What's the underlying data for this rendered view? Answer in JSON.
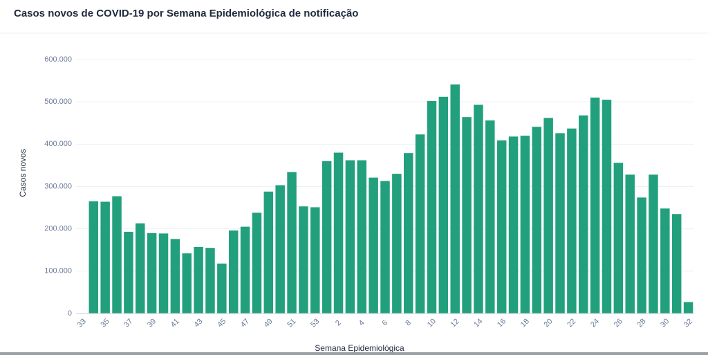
{
  "chart_data": {
    "type": "bar",
    "title": "Casos novos de COVID-19 por Semana Epidemiológica de notificação",
    "xlabel": "Semana Epidemiológica",
    "ylabel": "Casos novos",
    "categories": [
      "33",
      null,
      "35",
      null,
      "37",
      null,
      "39",
      null,
      "41",
      null,
      "43",
      null,
      "45",
      null,
      "47",
      null,
      "49",
      null,
      "51",
      null,
      "53",
      null,
      "2",
      null,
      "4",
      null,
      "6",
      null,
      "8",
      null,
      "10",
      null,
      "12",
      null,
      "14",
      null,
      "16",
      null,
      "18",
      null,
      "20",
      null,
      "22",
      null,
      "24",
      null,
      "26",
      null,
      "28",
      null,
      "30",
      null,
      "32"
    ],
    "values": [
      null,
      265000,
      264000,
      277000,
      193000,
      213000,
      190000,
      189000,
      176000,
      142000,
      157000,
      155000,
      118000,
      196000,
      205000,
      238000,
      288000,
      303000,
      334000,
      253000,
      251000,
      360000,
      380000,
      362000,
      362000,
      321000,
      313000,
      330000,
      379000,
      423000,
      502000,
      512000,
      541000,
      464000,
      493000,
      456000,
      409000,
      418000,
      420000,
      441000,
      462000,
      426000,
      437000,
      468000,
      510000,
      505000,
      356000,
      328000,
      274000,
      328000,
      248000,
      235000,
      27000
    ],
    "color": "#22a07d",
    "ylim": [
      0,
      600000
    ],
    "yticks": [
      0,
      {
        "value": 100000,
        "label": "100.000"
      },
      {
        "value": 200000,
        "label": "200.000"
      },
      {
        "value": 300000,
        "label": "300.000"
      },
      {
        "value": 400000,
        "label": "400.000"
      },
      {
        "value": 500000,
        "label": "500.000"
      },
      {
        "value": 600000,
        "label": "600.000"
      }
    ],
    "grid": true
  }
}
